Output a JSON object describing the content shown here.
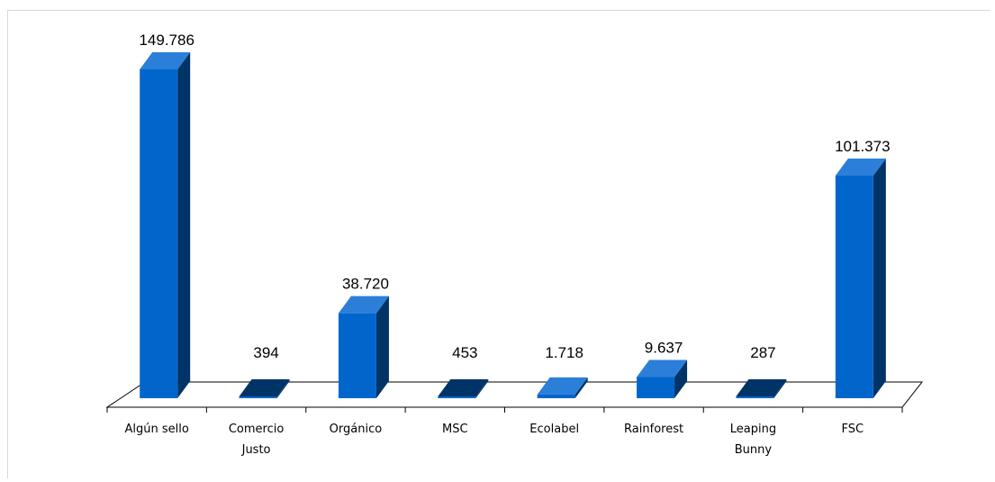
{
  "chart_data": {
    "type": "bar",
    "title": "",
    "xlabel": "",
    "ylabel": "",
    "categories": [
      [
        "Algún sello"
      ],
      [
        "Comercio",
        "Justo"
      ],
      [
        "Orgánico"
      ],
      [
        "MSC"
      ],
      [
        "Ecolabel"
      ],
      [
        "Rainforest"
      ],
      [
        "Leaping",
        "Bunny"
      ],
      [
        "FSC"
      ]
    ],
    "values": [
      149786,
      394,
      38720,
      453,
      1718,
      9637,
      287,
      101373
    ],
    "value_labels": [
      "149.786",
      "394",
      "38.720",
      "453",
      "1.718",
      "9.637",
      "287",
      "101.373"
    ],
    "ylim": [
      0,
      149786
    ],
    "grid": false,
    "legend": "none",
    "colors": {
      "bar_front": "#0066cc",
      "bar_top": "#2b7fd9",
      "bar_side": "#003366",
      "floor": "#ffffff",
      "floor_line": "#000000"
    }
  }
}
